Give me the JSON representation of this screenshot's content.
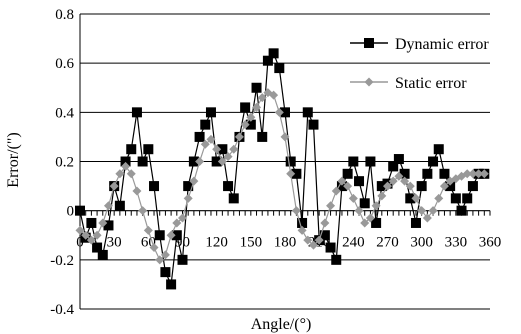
{
  "chart_data": {
    "type": "line",
    "title": "",
    "xlabel": "Angle/(°)",
    "ylabel": "Error/(\")",
    "xlim": [
      0,
      360
    ],
    "ylim": [
      -0.4,
      0.8
    ],
    "x_ticks": [
      "0",
      "30",
      "60",
      "90",
      "120",
      "150",
      "180",
      "210",
      "240",
      "270",
      "300",
      "330",
      "360"
    ],
    "y_ticks": [
      "-0.4",
      "-0.2",
      "0",
      "0.2",
      "0.4",
      "0.6",
      "0.8"
    ],
    "grid": "horizontal",
    "legend_position": "top-right",
    "series": [
      {
        "name": "Dynamic error",
        "color": "#000000",
        "marker": "square",
        "x": [
          0,
          5,
          10,
          15,
          20,
          25,
          30,
          35,
          40,
          45,
          50,
          55,
          60,
          65,
          70,
          75,
          80,
          85,
          90,
          95,
          100,
          105,
          110,
          115,
          120,
          125,
          130,
          135,
          140,
          145,
          150,
          155,
          160,
          165,
          170,
          175,
          180,
          185,
          190,
          195,
          200,
          205,
          210,
          215,
          220,
          225,
          230,
          235,
          240,
          245,
          250,
          255,
          260,
          265,
          270,
          275,
          280,
          285,
          290,
          295,
          300,
          305,
          310,
          315,
          320,
          325,
          330,
          335,
          340,
          345,
          350,
          355
        ],
        "values": [
          0.0,
          -0.11,
          -0.05,
          -0.15,
          -0.18,
          -0.06,
          0.1,
          0.02,
          0.2,
          0.25,
          0.4,
          0.2,
          0.25,
          0.1,
          -0.1,
          -0.25,
          -0.3,
          -0.1,
          -0.2,
          0.1,
          0.2,
          0.3,
          0.35,
          0.4,
          0.2,
          0.25,
          0.1,
          0.05,
          0.3,
          0.42,
          0.35,
          0.5,
          0.3,
          0.61,
          0.64,
          0.58,
          0.4,
          0.2,
          0.15,
          -0.05,
          0.4,
          0.35,
          -0.12,
          -0.1,
          -0.15,
          -0.2,
          0.1,
          0.15,
          0.2,
          0.12,
          0.03,
          0.2,
          -0.05,
          0.1,
          0.11,
          0.18,
          0.21,
          0.15,
          0.05,
          -0.05,
          0.1,
          0.15,
          0.2,
          0.25,
          0.15,
          0.1,
          0.05,
          0.0,
          0.05,
          0.1,
          0.15,
          0.15
        ]
      },
      {
        "name": "Static error",
        "color": "#999999",
        "marker": "diamond",
        "x": [
          0,
          5,
          10,
          15,
          20,
          25,
          30,
          35,
          40,
          45,
          50,
          55,
          60,
          65,
          70,
          75,
          80,
          85,
          90,
          95,
          100,
          105,
          110,
          115,
          120,
          125,
          130,
          135,
          140,
          145,
          150,
          155,
          160,
          165,
          170,
          175,
          180,
          185,
          190,
          195,
          200,
          205,
          210,
          215,
          220,
          225,
          230,
          235,
          240,
          245,
          250,
          255,
          260,
          265,
          270,
          275,
          280,
          285,
          290,
          295,
          300,
          305,
          310,
          315,
          320,
          325,
          330,
          335,
          340,
          345,
          350,
          355
        ],
        "values": [
          -0.08,
          -0.1,
          -0.12,
          -0.1,
          -0.05,
          0.02,
          0.1,
          0.15,
          0.18,
          0.15,
          0.08,
          0.0,
          -0.08,
          -0.15,
          -0.2,
          -0.18,
          -0.1,
          -0.05,
          -0.03,
          0.05,
          0.12,
          0.2,
          0.27,
          0.29,
          0.25,
          0.2,
          0.22,
          0.25,
          0.3,
          0.35,
          0.38,
          0.42,
          0.46,
          0.48,
          0.47,
          0.4,
          0.3,
          0.15,
          0.0,
          -0.08,
          -0.12,
          -0.14,
          -0.12,
          -0.05,
          0.02,
          0.08,
          0.12,
          0.1,
          0.05,
          0.0,
          -0.05,
          -0.03,
          0.02,
          0.06,
          0.1,
          0.12,
          0.14,
          0.12,
          0.1,
          0.05,
          0.0,
          -0.03,
          0.0,
          0.05,
          0.1,
          0.12,
          0.13,
          0.14,
          0.15,
          0.15,
          0.15,
          0.15
        ]
      }
    ]
  }
}
